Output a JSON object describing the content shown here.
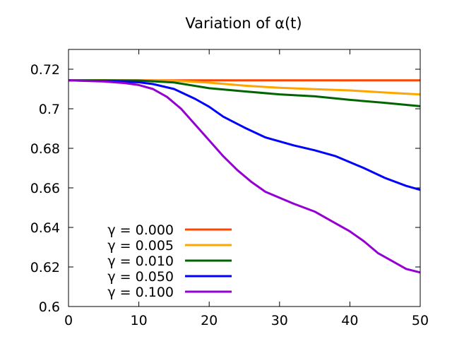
{
  "chart_data": {
    "type": "line",
    "title": "Variation of α(t)",
    "xlabel": "",
    "ylabel": "",
    "xlim": [
      0,
      50
    ],
    "ylim": [
      0.6,
      0.73
    ],
    "xticks": [
      0,
      10,
      20,
      30,
      40,
      50
    ],
    "xtick_labels": [
      "0",
      "10",
      "20",
      "30",
      "40",
      "50"
    ],
    "yticks": [
      0.6,
      0.62,
      0.64,
      0.66,
      0.68,
      0.7,
      0.72
    ],
    "ytick_labels": [
      "0.6",
      "0.62",
      "0.64",
      "0.66",
      "0.68",
      "0.7",
      "0.72"
    ],
    "grid": false,
    "legend_position": "bottom-left",
    "series": [
      {
        "name": "γ = 0.000",
        "color": "#ff4500",
        "x": [
          0,
          50
        ],
        "y": [
          0.7144,
          0.7144
        ]
      },
      {
        "name": "γ = 0.005",
        "color": "#ffa500",
        "x": [
          0,
          5,
          10,
          15,
          20,
          25,
          30,
          35,
          40,
          45,
          50
        ],
        "y": [
          0.7144,
          0.7144,
          0.7143,
          0.7142,
          0.7132,
          0.7117,
          0.7106,
          0.7099,
          0.7093,
          0.7082,
          0.7072
        ]
      },
      {
        "name": "γ = 0.010",
        "color": "#006400",
        "x": [
          0,
          5,
          10,
          15,
          20,
          25,
          30,
          35,
          40,
          45,
          50
        ],
        "y": [
          0.7144,
          0.7144,
          0.7143,
          0.7133,
          0.7104,
          0.7088,
          0.7073,
          0.7063,
          0.7045,
          0.703,
          0.7013
        ]
      },
      {
        "name": "γ = 0.050",
        "color": "#0000ff",
        "x": [
          0,
          5,
          10,
          12,
          15,
          18,
          20,
          22,
          25,
          28,
          30,
          32,
          35,
          38,
          40,
          42,
          45,
          48,
          50
        ],
        "y": [
          0.7144,
          0.714,
          0.7134,
          0.7125,
          0.71,
          0.705,
          0.701,
          0.696,
          0.6905,
          0.6855,
          0.6835,
          0.6815,
          0.679,
          0.676,
          0.673,
          0.67,
          0.665,
          0.661,
          0.659
        ]
      },
      {
        "name": "γ = 0.100",
        "color": "#9400d3",
        "x": [
          0,
          5,
          8,
          10,
          12,
          14,
          16,
          18,
          20,
          22,
          24,
          26,
          28,
          30,
          32,
          35,
          38,
          40,
          42,
          44,
          46,
          48,
          50
        ],
        "y": [
          0.7144,
          0.7138,
          0.713,
          0.712,
          0.71,
          0.706,
          0.7,
          0.692,
          0.684,
          0.676,
          0.669,
          0.663,
          0.658,
          0.655,
          0.652,
          0.648,
          0.642,
          0.638,
          0.633,
          0.627,
          0.623,
          0.619,
          0.6172
        ]
      }
    ]
  }
}
